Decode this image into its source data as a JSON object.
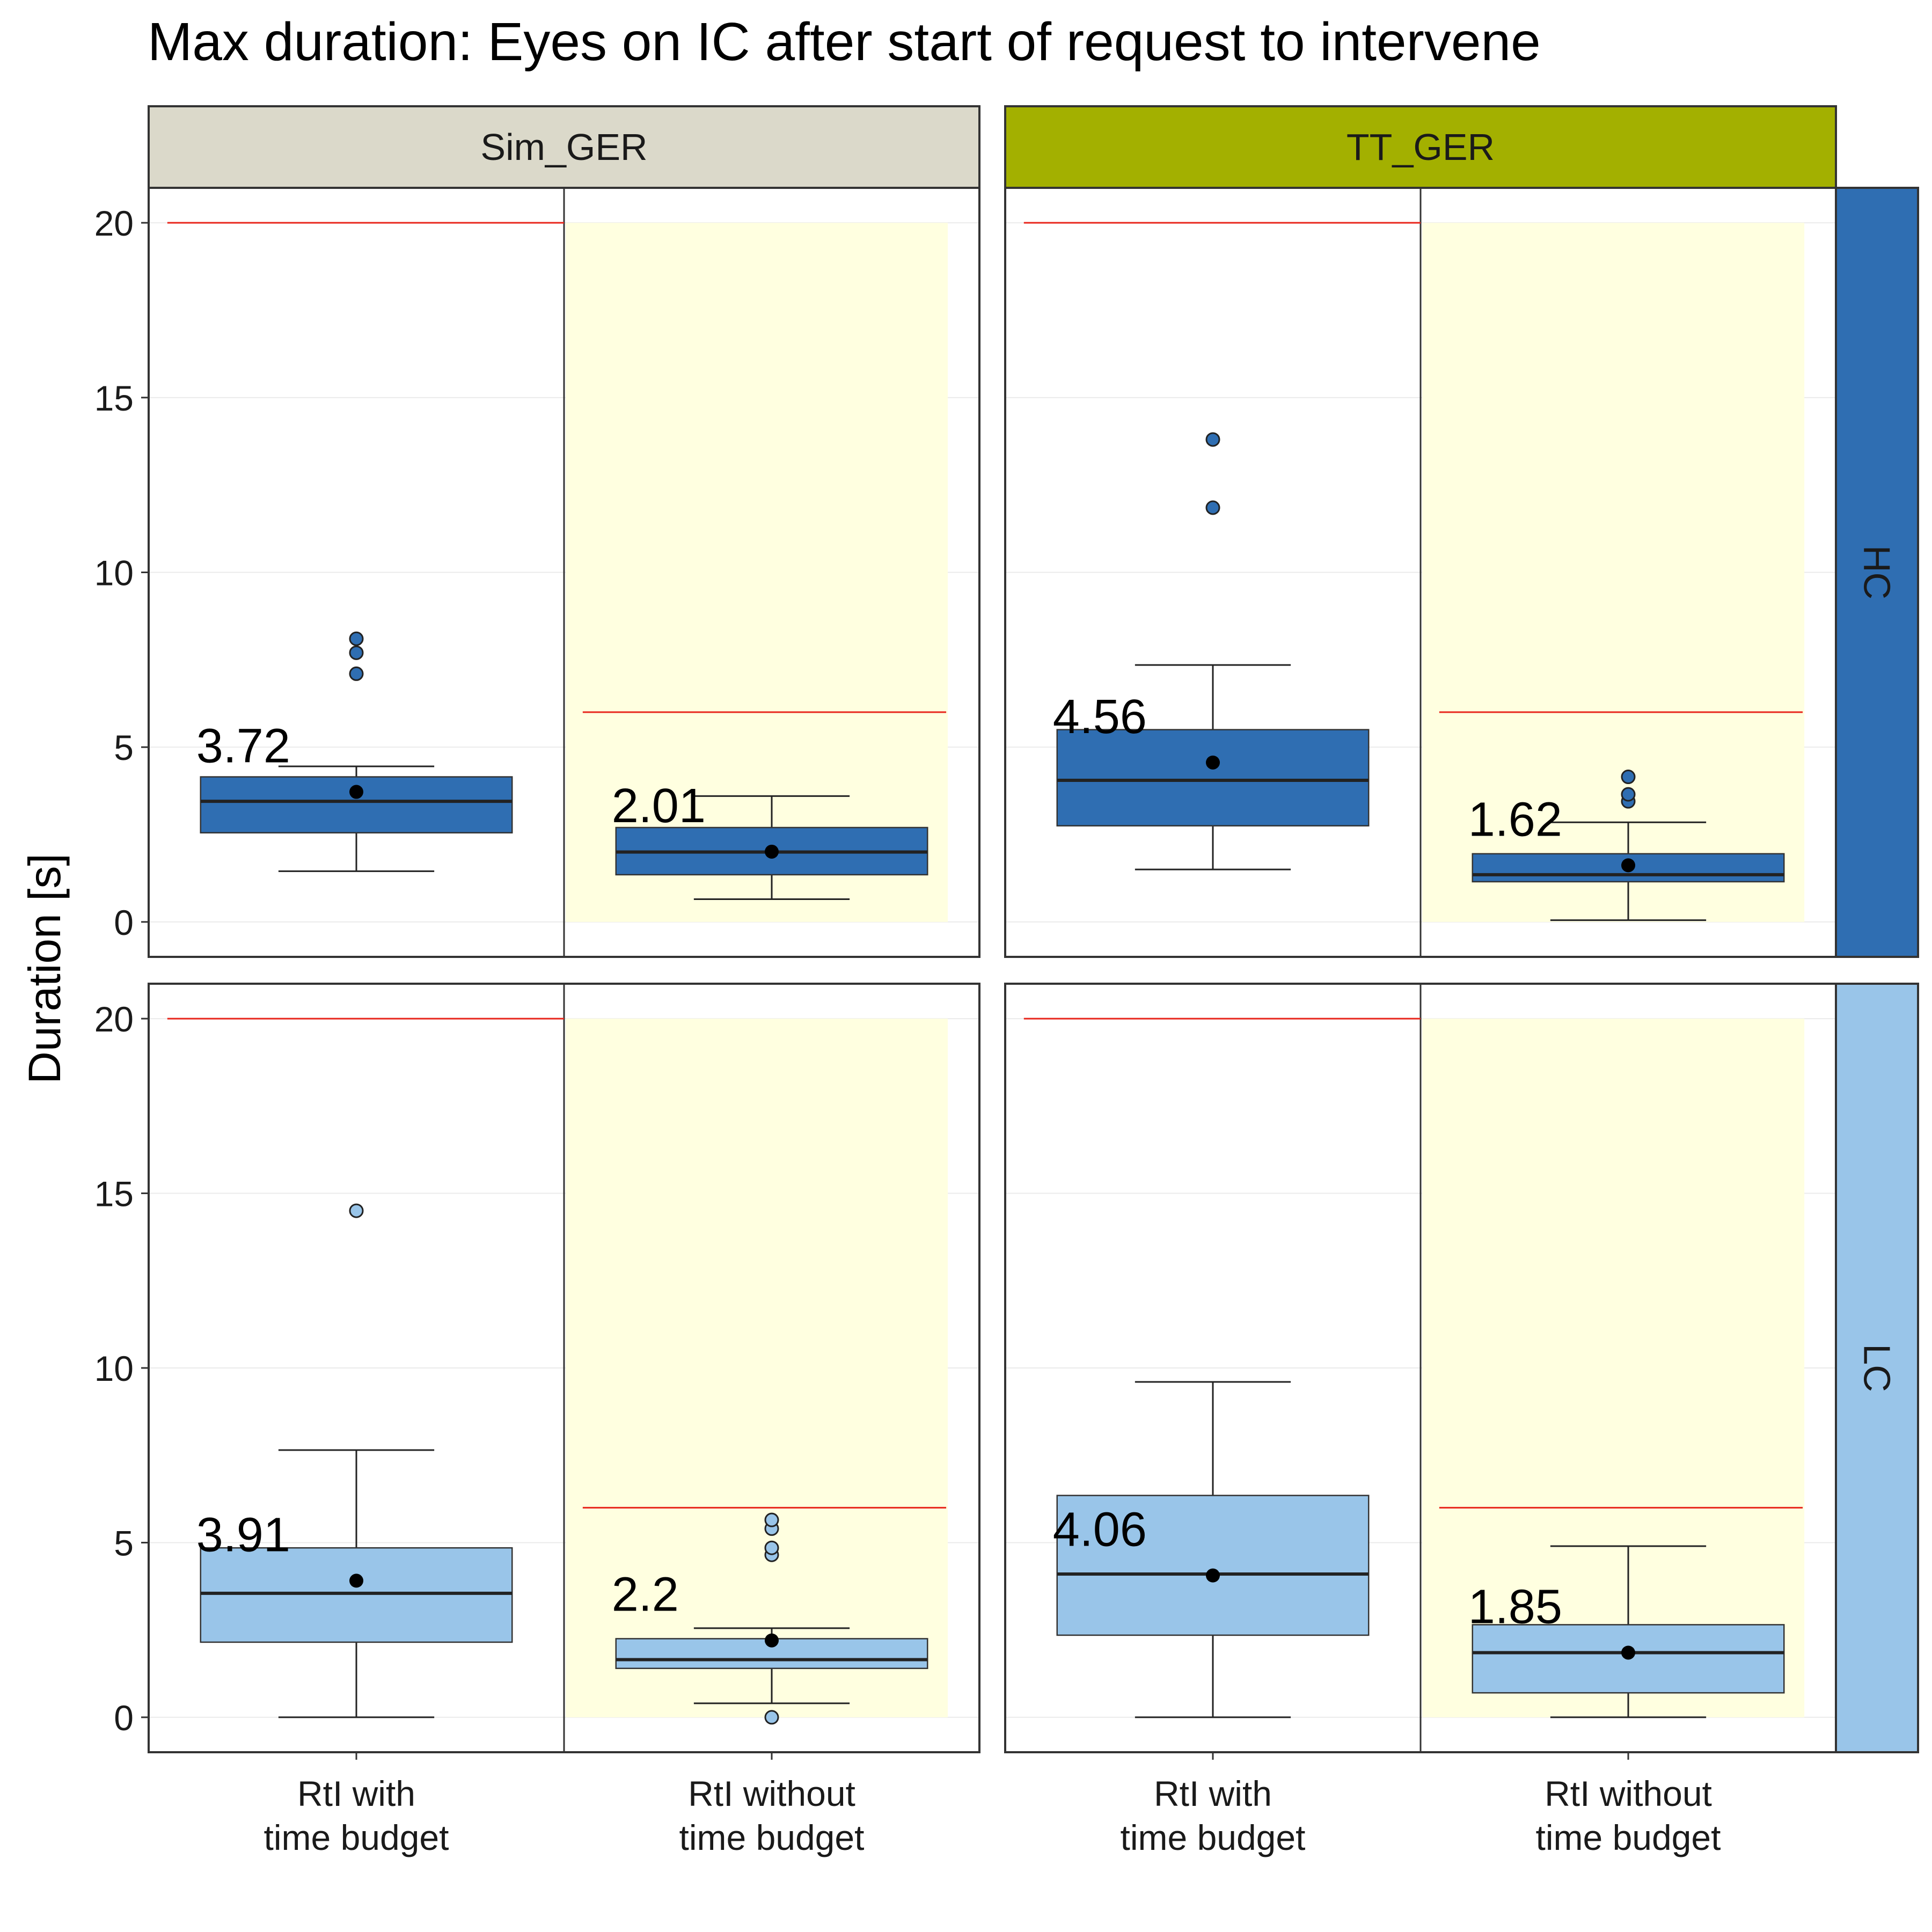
{
  "chart_data": {
    "type": "box",
    "title": "Max duration: Eyes on IC after start of request to intervene",
    "ylabel": "Duration [s]",
    "xlabel": "",
    "ylim": [
      -1,
      21
    ],
    "yticks": [
      0,
      5,
      10,
      15,
      20
    ],
    "grid": true,
    "categories": [
      "RtI with\ntime budget",
      "RtI without\ntime budget"
    ],
    "columns": [
      {
        "label": "Sim_GER",
        "color": "#dbd9ca"
      },
      {
        "label": "TT_GER",
        "color": "#a3b000"
      }
    ],
    "rows": [
      {
        "label": "HC",
        "color": "#2f6eb2"
      },
      {
        "label": "LC",
        "color": "#99c5e9"
      }
    ],
    "time_budget_lines": {
      "with_time_budget": 20,
      "without_time_budget": 6,
      "color": "#e8261c"
    },
    "shaded_region": {
      "category": "RtI without\ntime budget",
      "from": 0,
      "to": 20,
      "color": "#ffffe0"
    },
    "panels": [
      {
        "column": "Sim_GER",
        "row": "HC",
        "boxes": [
          {
            "category": "RtI with\ntime budget",
            "whisker_low": 1.45,
            "q1": 2.55,
            "median": 3.45,
            "q3": 4.15,
            "whisker_high": 4.45,
            "mean": 3.72,
            "label": "3.72",
            "outliers": [
              7.1,
              7.7,
              8.1
            ]
          },
          {
            "category": "RtI without\ntime budget",
            "whisker_low": 0.65,
            "q1": 1.35,
            "median": 2.0,
            "q3": 2.7,
            "whisker_high": 3.6,
            "mean": 2.01,
            "label": "2.01",
            "outliers": []
          }
        ]
      },
      {
        "column": "TT_GER",
        "row": "HC",
        "boxes": [
          {
            "category": "RtI with\ntime budget",
            "whisker_low": 1.5,
            "q1": 2.75,
            "median": 4.05,
            "q3": 5.5,
            "whisker_high": 7.35,
            "mean": 4.56,
            "label": "4.56",
            "outliers": [
              11.85,
              13.8
            ]
          },
          {
            "category": "RtI without\ntime budget",
            "whisker_low": 0.05,
            "q1": 1.15,
            "median": 1.35,
            "q3": 1.95,
            "whisker_high": 2.85,
            "mean": 1.62,
            "label": "1.62",
            "outliers": [
              3.45,
              3.65,
              4.15
            ]
          }
        ]
      },
      {
        "column": "Sim_GER",
        "row": "LC",
        "boxes": [
          {
            "category": "RtI with\ntime budget",
            "whisker_low": 0.0,
            "q1": 2.15,
            "median": 3.55,
            "q3": 4.85,
            "whisker_high": 7.65,
            "mean": 3.91,
            "label": "3.91",
            "outliers": [
              14.5
            ]
          },
          {
            "category": "RtI without\ntime budget",
            "whisker_low": 0.4,
            "q1": 1.4,
            "median": 1.65,
            "q3": 2.25,
            "whisker_high": 2.55,
            "mean": 2.2,
            "label": "2.2",
            "outliers": [
              0.0,
              4.65,
              4.85,
              5.4,
              5.65
            ]
          }
        ]
      },
      {
        "column": "TT_GER",
        "row": "LC",
        "boxes": [
          {
            "category": "RtI with\ntime budget",
            "whisker_low": 0.0,
            "q1": 2.35,
            "median": 4.1,
            "q3": 6.35,
            "whisker_high": 9.6,
            "mean": 4.06,
            "label": "4.06",
            "outliers": []
          },
          {
            "category": "RtI without\ntime budget",
            "whisker_low": 0.0,
            "q1": 0.7,
            "median": 1.85,
            "q3": 2.65,
            "whisker_high": 4.9,
            "mean": 1.85,
            "label": "1.85",
            "outliers": []
          }
        ]
      }
    ]
  }
}
